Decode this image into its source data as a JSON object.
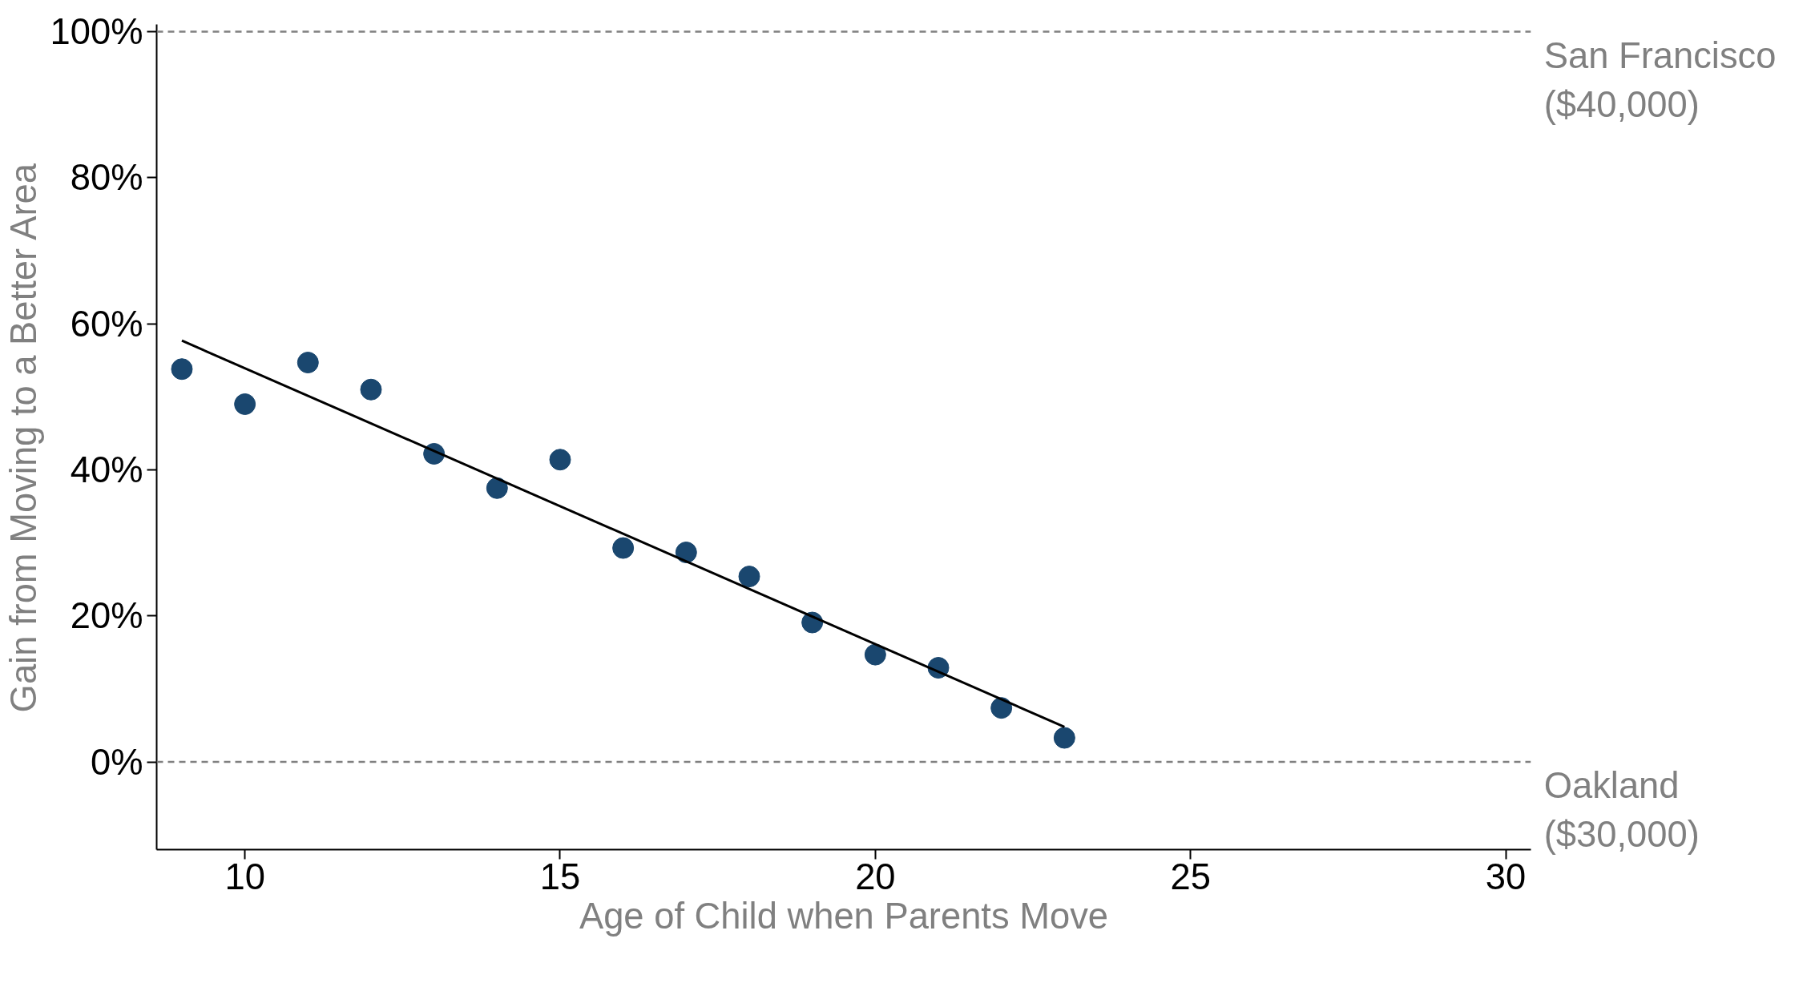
{
  "chart_data": {
    "type": "scatter",
    "xlabel": "Age of Child when Parents Move",
    "ylabel": "Gain from Moving to a Better Area",
    "xlim": [
      8.6,
      30.4
    ],
    "xticks": [
      10,
      15,
      20,
      25,
      30
    ],
    "ylim": [
      -12,
      101
    ],
    "yticks": [
      {
        "value": 0,
        "label": "0%"
      },
      {
        "value": 20,
        "label": "20%"
      },
      {
        "value": 40,
        "label": "40%"
      },
      {
        "value": 60,
        "label": "60%"
      },
      {
        "value": 80,
        "label": "80%"
      },
      {
        "value": 100,
        "label": "100%"
      }
    ],
    "grid": false,
    "series": [
      {
        "marker": "circle",
        "color": "#1a476f",
        "x": [
          9,
          10,
          11,
          12,
          13,
          14,
          15,
          16,
          17,
          18,
          19,
          20,
          21,
          22,
          23
        ],
        "values": [
          53.8,
          49.0,
          54.7,
          51.0,
          42.2,
          37.5,
          41.4,
          29.3,
          28.7,
          25.4,
          19.1,
          14.7,
          12.9,
          7.4,
          3.3
        ]
      },
      {
        "type": "line",
        "marker": "none",
        "color": "#000000",
        "line_style": "solid",
        "x": [
          9,
          23
        ],
        "values": [
          57.7,
          4.8
        ]
      }
    ],
    "ref_lines": [
      {
        "axis": "y",
        "value": 100,
        "label": "San Francisco\n($40,000)",
        "color": "#808080",
        "line_style": "dashed"
      },
      {
        "axis": "y",
        "value": 0,
        "label": "Oakland\n($30,000)",
        "color": "#808080",
        "line_style": "dashed"
      }
    ]
  }
}
